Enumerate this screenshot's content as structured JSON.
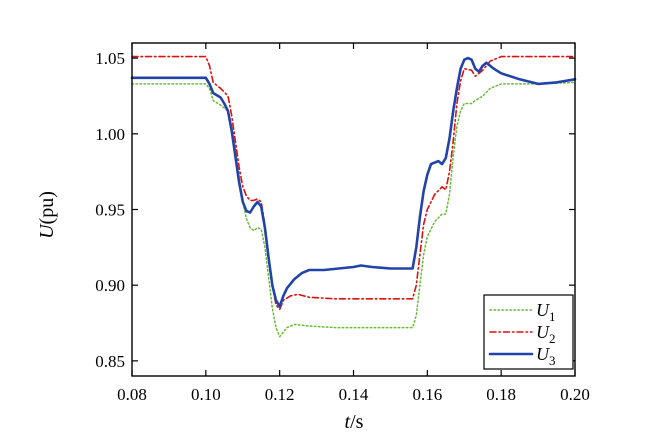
{
  "chart_data": {
    "type": "line",
    "xlabel": {
      "italic": "t",
      "rest": "/s"
    },
    "ylabel": {
      "italic": "U",
      "rest": "(pu)"
    },
    "xlim": [
      0.08,
      0.2
    ],
    "ylim": [
      0.84,
      1.06
    ],
    "xticks": [
      0.08,
      0.1,
      0.12,
      0.14,
      0.16,
      0.18,
      0.2
    ],
    "xtick_labels": [
      "0.08",
      "0.10",
      "0.12",
      "0.14",
      "0.16",
      "0.18",
      "0.20"
    ],
    "yticks": [
      0.85,
      0.9,
      0.95,
      1.0,
      1.05
    ],
    "ytick_labels": [
      "0.85",
      "0.90",
      "0.95",
      "1.00",
      "1.05"
    ],
    "grid": false,
    "legend_position": "bottom-right",
    "series": [
      {
        "name": "U",
        "subscript": "1",
        "color": "#66bb33",
        "style": "dotted",
        "points": [
          [
            0.08,
            1.033
          ],
          [
            0.1,
            1.033
          ],
          [
            0.101,
            1.03
          ],
          [
            0.102,
            1.022
          ],
          [
            0.104,
            1.019
          ],
          [
            0.106,
            1.015
          ],
          [
            0.107,
            1.005
          ],
          [
            0.108,
            0.99
          ],
          [
            0.109,
            0.972
          ],
          [
            0.11,
            0.955
          ],
          [
            0.111,
            0.944
          ],
          [
            0.112,
            0.938
          ],
          [
            0.113,
            0.936
          ],
          [
            0.114,
            0.938
          ],
          [
            0.115,
            0.937
          ],
          [
            0.116,
            0.925
          ],
          [
            0.117,
            0.905
          ],
          [
            0.118,
            0.885
          ],
          [
            0.119,
            0.872
          ],
          [
            0.12,
            0.866
          ],
          [
            0.121,
            0.869
          ],
          [
            0.122,
            0.872
          ],
          [
            0.124,
            0.874
          ],
          [
            0.128,
            0.873
          ],
          [
            0.135,
            0.872
          ],
          [
            0.145,
            0.872
          ],
          [
            0.156,
            0.872
          ],
          [
            0.157,
            0.88
          ],
          [
            0.158,
            0.9
          ],
          [
            0.159,
            0.92
          ],
          [
            0.16,
            0.932
          ],
          [
            0.162,
            0.942
          ],
          [
            0.164,
            0.947
          ],
          [
            0.165,
            0.947
          ],
          [
            0.166,
            0.96
          ],
          [
            0.167,
            0.985
          ],
          [
            0.168,
            1.005
          ],
          [
            0.169,
            1.015
          ],
          [
            0.17,
            1.02
          ],
          [
            0.172,
            1.02
          ],
          [
            0.173,
            1.022
          ],
          [
            0.175,
            1.025
          ],
          [
            0.177,
            1.03
          ],
          [
            0.18,
            1.033
          ],
          [
            0.19,
            1.033
          ],
          [
            0.2,
            1.034
          ]
        ]
      },
      {
        "name": "U",
        "subscript": "2",
        "color": "#dd1111",
        "style": "dashdot",
        "points": [
          [
            0.08,
            1.051
          ],
          [
            0.1,
            1.051
          ],
          [
            0.101,
            1.045
          ],
          [
            0.102,
            1.034
          ],
          [
            0.103,
            1.032
          ],
          [
            0.104,
            1.03
          ],
          [
            0.106,
            1.025
          ],
          [
            0.107,
            1.012
          ],
          [
            0.108,
            0.995
          ],
          [
            0.109,
            0.978
          ],
          [
            0.11,
            0.965
          ],
          [
            0.111,
            0.959
          ],
          [
            0.112,
            0.956
          ],
          [
            0.113,
            0.956
          ],
          [
            0.114,
            0.957
          ],
          [
            0.115,
            0.955
          ],
          [
            0.116,
            0.94
          ],
          [
            0.117,
            0.92
          ],
          [
            0.118,
            0.9
          ],
          [
            0.119,
            0.887
          ],
          [
            0.12,
            0.884
          ],
          [
            0.121,
            0.89
          ],
          [
            0.123,
            0.893
          ],
          [
            0.125,
            0.894
          ],
          [
            0.128,
            0.892
          ],
          [
            0.135,
            0.891
          ],
          [
            0.145,
            0.891
          ],
          [
            0.156,
            0.891
          ],
          [
            0.157,
            0.9
          ],
          [
            0.158,
            0.92
          ],
          [
            0.159,
            0.94
          ],
          [
            0.16,
            0.95
          ],
          [
            0.162,
            0.96
          ],
          [
            0.164,
            0.965
          ],
          [
            0.165,
            0.963
          ],
          [
            0.166,
            0.975
          ],
          [
            0.167,
            0.995
          ],
          [
            0.168,
            1.02
          ],
          [
            0.169,
            1.035
          ],
          [
            0.17,
            1.043
          ],
          [
            0.172,
            1.042
          ],
          [
            0.173,
            1.038
          ],
          [
            0.175,
            1.042
          ],
          [
            0.177,
            1.048
          ],
          [
            0.18,
            1.051
          ],
          [
            0.19,
            1.051
          ],
          [
            0.2,
            1.051
          ]
        ]
      },
      {
        "name": "U",
        "subscript": "3",
        "color": "#2244aa",
        "style": "solid",
        "points": [
          [
            0.08,
            1.037
          ],
          [
            0.1,
            1.037
          ],
          [
            0.101,
            1.033
          ],
          [
            0.102,
            1.027
          ],
          [
            0.104,
            1.024
          ],
          [
            0.105,
            1.02
          ],
          [
            0.106,
            1.015
          ],
          [
            0.107,
            1.002
          ],
          [
            0.108,
            0.985
          ],
          [
            0.109,
            0.968
          ],
          [
            0.11,
            0.955
          ],
          [
            0.111,
            0.949
          ],
          [
            0.112,
            0.948
          ],
          [
            0.113,
            0.952
          ],
          [
            0.114,
            0.955
          ],
          [
            0.115,
            0.952
          ],
          [
            0.116,
            0.938
          ],
          [
            0.117,
            0.918
          ],
          [
            0.118,
            0.9
          ],
          [
            0.119,
            0.89
          ],
          [
            0.12,
            0.886
          ],
          [
            0.121,
            0.893
          ],
          [
            0.122,
            0.898
          ],
          [
            0.124,
            0.904
          ],
          [
            0.126,
            0.908
          ],
          [
            0.128,
            0.91
          ],
          [
            0.132,
            0.91
          ],
          [
            0.136,
            0.911
          ],
          [
            0.14,
            0.912
          ],
          [
            0.142,
            0.913
          ],
          [
            0.145,
            0.912
          ],
          [
            0.15,
            0.911
          ],
          [
            0.156,
            0.911
          ],
          [
            0.157,
            0.925
          ],
          [
            0.158,
            0.945
          ],
          [
            0.159,
            0.962
          ],
          [
            0.16,
            0.973
          ],
          [
            0.161,
            0.98
          ],
          [
            0.163,
            0.982
          ],
          [
            0.164,
            0.98
          ],
          [
            0.165,
            0.984
          ],
          [
            0.166,
            0.997
          ],
          [
            0.167,
            1.015
          ],
          [
            0.168,
            1.03
          ],
          [
            0.169,
            1.043
          ],
          [
            0.17,
            1.049
          ],
          [
            0.171,
            1.05
          ],
          [
            0.172,
            1.049
          ],
          [
            0.173,
            1.043
          ],
          [
            0.174,
            1.041
          ],
          [
            0.175,
            1.045
          ],
          [
            0.176,
            1.047
          ],
          [
            0.178,
            1.043
          ],
          [
            0.18,
            1.04
          ],
          [
            0.185,
            1.036
          ],
          [
            0.19,
            1.033
          ],
          [
            0.195,
            1.034
          ],
          [
            0.2,
            1.036
          ]
        ]
      }
    ]
  }
}
